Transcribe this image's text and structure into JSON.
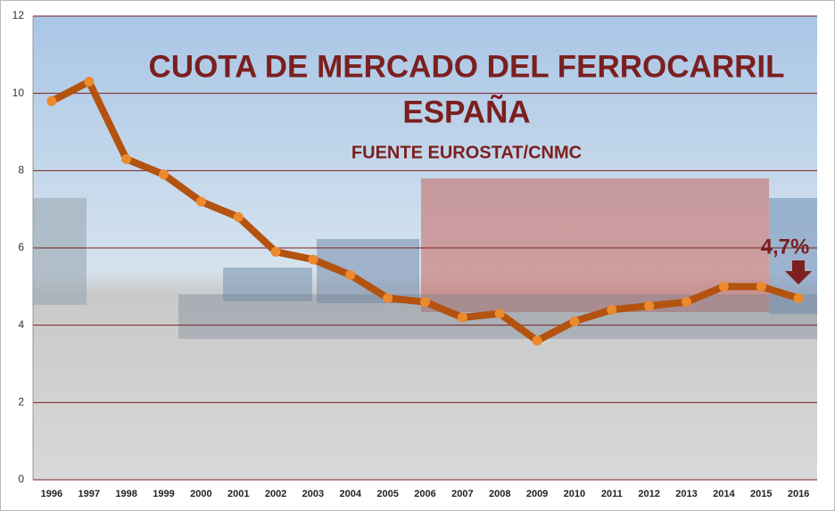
{
  "chart_data": {
    "type": "line",
    "title": [
      "CUOTA DE MERCADO DEL FERROCARRIL",
      "ESPAÑA"
    ],
    "subtitle": "FUENTE EUROSTAT/CNMC",
    "annotation": "4,7%",
    "categories": [
      "1996",
      "1997",
      "1998",
      "1999",
      "2000",
      "2001",
      "2002",
      "2003",
      "2004",
      "2005",
      "2006",
      "2007",
      "2008",
      "2009",
      "2010",
      "2011",
      "2012",
      "2013",
      "2014",
      "2015",
      "2016"
    ],
    "values": [
      9.8,
      10.3,
      8.3,
      7.9,
      7.2,
      6.8,
      5.9,
      5.7,
      5.3,
      4.7,
      4.6,
      4.2,
      4.3,
      3.6,
      4.1,
      4.4,
      4.5,
      4.6,
      5.0,
      5.0,
      4.7
    ],
    "color": "#b4520f",
    "marker_color": "#ec8a2e",
    "ylim": [
      0,
      12
    ],
    "yticks": [
      0,
      2,
      4,
      6,
      8,
      10,
      12
    ],
    "grid": true
  }
}
